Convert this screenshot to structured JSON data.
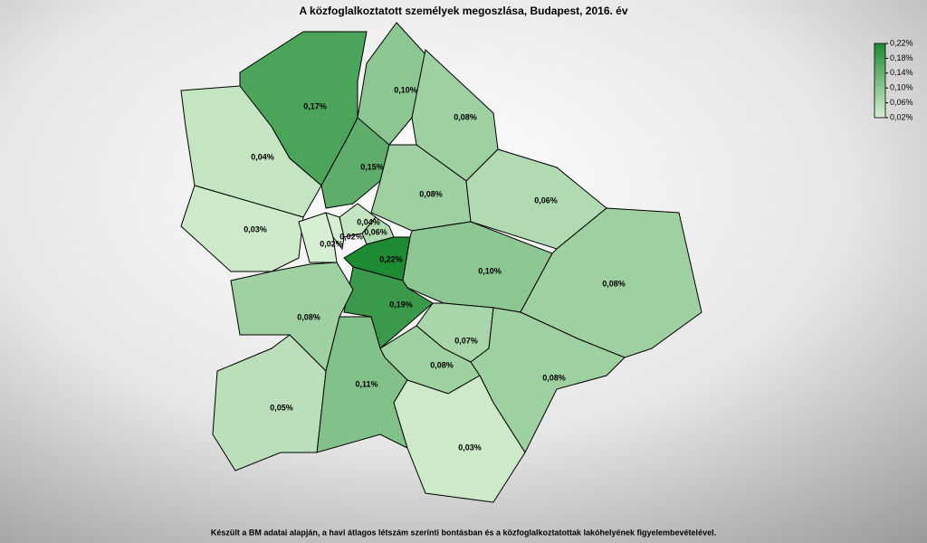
{
  "title": "A közfoglalkoztatott személyek megoszlása, Budapest, 2016. év",
  "footnote": "Készült a BM adatai alapján, a havi átlagos létszám szerinti bontásban és a közfoglalkoztatottak lakóhelyének figyelembevételével.",
  "legend": {
    "colors": [
      "#d6eed2",
      "#1e8a32"
    ],
    "range": [
      0.02,
      0.22
    ],
    "ticks": [
      {
        "value": 0.22,
        "label": "0,22%"
      },
      {
        "value": 0.18,
        "label": "0,18%"
      },
      {
        "value": 0.14,
        "label": "0,14%"
      },
      {
        "value": 0.1,
        "label": "0,10%"
      },
      {
        "value": 0.06,
        "label": "0,06%"
      },
      {
        "value": 0.02,
        "label": "0,02%"
      }
    ]
  },
  "regions": [
    {
      "value": 0.17,
      "label": "0,17%"
    },
    {
      "value": 0.1,
      "label": "0,10%"
    },
    {
      "value": 0.08,
      "label": "0,08%"
    },
    {
      "value": 0.15,
      "label": "0,15%"
    },
    {
      "value": 0.04,
      "label": "0,04%"
    },
    {
      "value": 0.08,
      "label": "0,08%"
    },
    {
      "value": 0.06,
      "label": "0,06%"
    },
    {
      "value": 0.03,
      "label": "0,03%"
    },
    {
      "value": 0.02,
      "label": "0,02%"
    },
    {
      "value": 0.04,
      "label": "0,04%"
    },
    {
      "value": 0.02,
      "label": "0,02%"
    },
    {
      "value": 0.06,
      "label": "0,06%"
    },
    {
      "value": 0.22,
      "label": "0,22%"
    },
    {
      "value": 0.1,
      "label": "0,10%"
    },
    {
      "value": 0.08,
      "label": "0,08%"
    },
    {
      "value": 0.19,
      "label": "0,19%"
    },
    {
      "value": 0.08,
      "label": "0,08%"
    },
    {
      "value": 0.07,
      "label": "0,07%"
    },
    {
      "value": 0.08,
      "label": "0,08%"
    },
    {
      "value": 0.08,
      "label": "0,08%"
    },
    {
      "value": 0.11,
      "label": "0,11%"
    },
    {
      "value": 0.05,
      "label": "0,05%"
    },
    {
      "value": 0.03,
      "label": "0,03%"
    }
  ]
}
